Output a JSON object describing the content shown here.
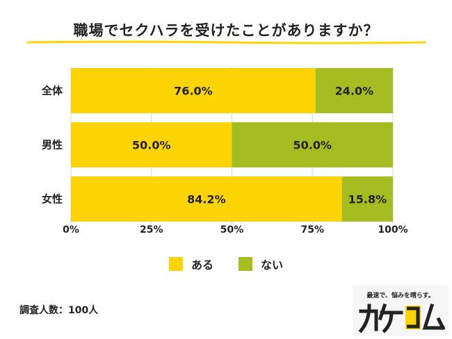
{
  "title": "職場でセクハラを受けたことがありますか？",
  "footnote": "調査人数：100人",
  "logo": {
    "tagline": "最速で、悩みを晴らす。",
    "wordmark": "カケコム"
  },
  "colors": {
    "aru": "#fcd404",
    "nai": "#a6bd22",
    "underline": "#fcd404"
  },
  "legend": [
    {
      "label": "ある",
      "color": "#fcd404"
    },
    {
      "label": "ない",
      "color": "#a6bd22"
    }
  ],
  "chart_data": {
    "type": "bar",
    "orientation": "horizontal",
    "stacked": true,
    "categories": [
      "全体",
      "男性",
      "女性"
    ],
    "series": [
      {
        "name": "ある",
        "values": [
          76.0,
          50.0,
          84.2
        ],
        "color": "#fcd404"
      },
      {
        "name": "ない",
        "values": [
          24.0,
          50.0,
          15.8
        ],
        "color": "#a6bd22"
      }
    ],
    "data_labels": [
      [
        "76.0%",
        "50.0%",
        "84.2%"
      ],
      [
        "24.0%",
        "50.0%",
        "15.8%"
      ]
    ],
    "xlim": [
      0,
      100
    ],
    "xticks": [
      "0%",
      "25%",
      "50%",
      "75%",
      "100%"
    ],
    "grid": true,
    "legend_position": "bottom"
  }
}
